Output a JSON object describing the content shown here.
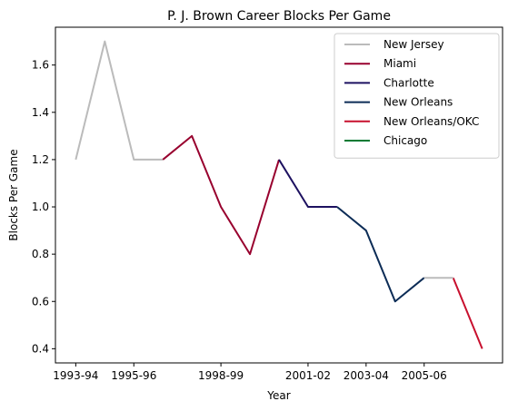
{
  "chart_data": {
    "type": "line",
    "title": "P. J. Brown Career Blocks Per Game",
    "xlabel": "Year",
    "ylabel": "Blocks Per Game",
    "ylim": [
      0.34,
      1.76
    ],
    "yticks": [
      0.4,
      0.6,
      0.8,
      1.0,
      1.2,
      1.4,
      1.6
    ],
    "ytick_labels": [
      "0.4",
      "0.6",
      "0.8",
      "1.0",
      "1.2",
      "1.4",
      "1.6"
    ],
    "x_tick_labels": [
      {
        "season": "1993-94",
        "label": "1993-94"
      },
      {
        "season": "1995-96",
        "label": "1995-96"
      },
      {
        "season": "1998-99",
        "label": "1998-99"
      },
      {
        "season": "2001-02",
        "label": "2001-02"
      },
      {
        "season": "2003-04",
        "label": "2003-04"
      },
      {
        "season": "2005-06",
        "label": "2005-06"
      }
    ],
    "grid": false,
    "legend_position": "top-right",
    "seasons": [
      "1993-94",
      "1994-95",
      "1995-96",
      "1996-97",
      "1997-98",
      "1998-99",
      "1999-00",
      "2000-01",
      "2001-02",
      "2002-03",
      "2003-04",
      "2004-05",
      "2005-06",
      "2006-07",
      "2007-08"
    ],
    "series": [
      {
        "name": "New Jersey",
        "color": "#bbbbbb",
        "points": [
          {
            "season": "1993-94",
            "y": 1.2
          },
          {
            "season": "1994-95",
            "y": 1.7
          },
          {
            "season": "1995-96",
            "y": 1.2
          },
          {
            "season": "1996-97",
            "y": 1.2
          }
        ]
      },
      {
        "name": "Miami",
        "color": "#98002e",
        "points": [
          {
            "season": "1996-97",
            "y": 1.2
          },
          {
            "season": "1997-98",
            "y": 1.3
          },
          {
            "season": "1998-99",
            "y": 1.0
          },
          {
            "season": "1999-00",
            "y": 0.8
          },
          {
            "season": "2000-01",
            "y": 1.2
          }
        ]
      },
      {
        "name": "Charlotte",
        "color": "#1d1160",
        "points": [
          {
            "season": "2000-01",
            "y": 1.2
          },
          {
            "season": "2001-02",
            "y": 1.0
          },
          {
            "season": "2002-03",
            "y": 1.0
          }
        ]
      },
      {
        "name": "New Orleans",
        "color": "#0c2c56",
        "points": [
          {
            "season": "2002-03",
            "y": 1.0
          },
          {
            "season": "2003-04",
            "y": 0.9
          },
          {
            "season": "2004-05",
            "y": 0.6
          },
          {
            "season": "2005-06",
            "y": 0.7
          }
        ]
      },
      {
        "name": "New Orleans/OKC",
        "color": "#c8102e",
        "points": [
          {
            "season": "2006-07",
            "y": 0.7
          },
          {
            "season": "2007-08",
            "y": 0.4
          }
        ]
      },
      {
        "name": "Chicago",
        "color": "#007a33",
        "points": []
      }
    ],
    "extra_segments": [
      {
        "color": "#bbbbbb",
        "points": [
          {
            "season": "2005-06",
            "y": 0.7
          },
          {
            "season": "2006-07",
            "y": 0.7
          }
        ]
      }
    ]
  }
}
